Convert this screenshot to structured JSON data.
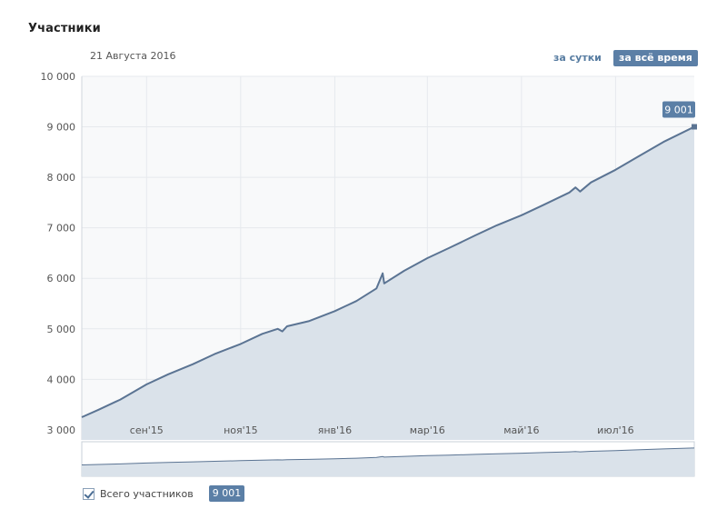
{
  "header": {
    "title": "Участники",
    "date": "21 Августа 2016",
    "period_day": "за сутки",
    "period_all": "за всё время"
  },
  "legend": {
    "label": "Всего участников",
    "value": "9 001"
  },
  "colors": {
    "line": "#5b7493",
    "area": "#dae2ea",
    "accent": "#5b7fa6"
  },
  "chart_data": {
    "type": "area",
    "title": "Участники",
    "xlabel": "",
    "ylabel": "",
    "y_ticks": [
      3000,
      4000,
      5000,
      6000,
      7000,
      8000,
      9000,
      10000
    ],
    "y_tick_labels": [
      "3 000",
      "4 000",
      "5 000",
      "6 000",
      "7 000",
      "8 000",
      "9 000",
      "10 000"
    ],
    "x_ticks": [
      {
        "date": "2015-09-01",
        "label": "сен'15"
      },
      {
        "date": "2015-11-01",
        "label": "ноя'15"
      },
      {
        "date": "2016-01-01",
        "label": "янв'16"
      },
      {
        "date": "2016-03-01",
        "label": "мар'16"
      },
      {
        "date": "2016-05-01",
        "label": "май'16"
      },
      {
        "date": "2016-07-01",
        "label": "июл'16"
      }
    ],
    "x_range": [
      "2015-07-21",
      "2016-08-21"
    ],
    "ylim": [
      2800,
      10000
    ],
    "grid": true,
    "last_value_label": "9 001",
    "series": [
      {
        "name": "Всего участников",
        "x": [
          "2015-07-21",
          "2015-08-01",
          "2015-08-15",
          "2015-09-01",
          "2015-09-15",
          "2015-10-01",
          "2015-10-15",
          "2015-11-01",
          "2015-11-15",
          "2015-11-25",
          "2015-11-28",
          "2015-12-01",
          "2015-12-15",
          "2016-01-01",
          "2016-01-15",
          "2016-01-28",
          "2016-02-01",
          "2016-02-02",
          "2016-02-15",
          "2016-03-01",
          "2016-03-15",
          "2016-04-01",
          "2016-04-15",
          "2016-05-01",
          "2016-05-15",
          "2016-06-01",
          "2016-06-05",
          "2016-06-08",
          "2016-06-15",
          "2016-07-01",
          "2016-07-15",
          "2016-08-01",
          "2016-08-21"
        ],
        "values": [
          3250,
          3400,
          3600,
          3900,
          4100,
          4300,
          4500,
          4700,
          4900,
          5000,
          4950,
          5050,
          5150,
          5350,
          5550,
          5800,
          6100,
          5900,
          6150,
          6400,
          6600,
          6850,
          7050,
          7250,
          7450,
          7700,
          7800,
          7720,
          7900,
          8150,
          8400,
          8700,
          9001
        ]
      }
    ]
  }
}
